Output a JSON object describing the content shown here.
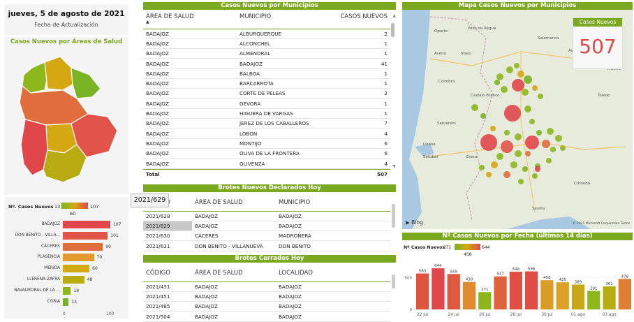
{
  "header": {
    "date": "jueves, 5 de agosto de 2021",
    "date_label": "Fecha de Actualización"
  },
  "areas_map": {
    "title": "Casos Nuevos por Áreas de Salud"
  },
  "areas_chart": {
    "legend_label": "Nº. Casos Nuevos",
    "legend_min": "13",
    "legend_max": "107",
    "legend_mid": "60",
    "categories": [
      "BADAJOZ",
      "DON BENITO - VILLA...",
      "CÁCERES",
      "PLASENCIA",
      "MÉRIDA",
      "LLERENA-ZAFRA",
      "NAVALMORAL DE LA ...",
      "CORIA"
    ],
    "values": [
      107,
      101,
      90,
      70,
      60,
      48,
      18,
      13
    ],
    "colors": [
      "#e1474a",
      "#e2534a",
      "#e06e3d",
      "#e59a2d",
      "#d5a812",
      "#b9ac12",
      "#8db81d",
      "#7ab324"
    ],
    "axis_ticks": [
      "0",
      "100"
    ]
  },
  "municipios": {
    "title": "Casos Nuevos por Municipios",
    "col_area": "ÁREA DE SALUD",
    "col_mun": "MUNICIPIO",
    "col_casos": "CASOS NUEVOS",
    "rows": [
      [
        "BADAJOZ",
        "ALBURQUERQUE",
        "2"
      ],
      [
        "BADAJOZ",
        "ALCONCHEL",
        "1"
      ],
      [
        "BADAJOZ",
        "ALMENDRAL",
        "1"
      ],
      [
        "BADAJOZ",
        "BADAJOZ",
        "41"
      ],
      [
        "BADAJOZ",
        "BALBOA",
        "1"
      ],
      [
        "BADAJOZ",
        "BARCARROTA",
        "1"
      ],
      [
        "BADAJOZ",
        "CORTE DE PELEAS",
        "2"
      ],
      [
        "BADAJOZ",
        "GEVORA",
        "1"
      ],
      [
        "BADAJOZ",
        "HIGUERA DE VARGAS",
        "1"
      ],
      [
        "BADAJOZ",
        "JEREZ DE LOS CABALLEROS",
        "7"
      ],
      [
        "BADAJOZ",
        "LOBON",
        "4"
      ],
      [
        "BADAJOZ",
        "MONTIJO",
        "6"
      ],
      [
        "BADAJOZ",
        "OLIVA DE LA FRONTERA",
        "6"
      ],
      [
        "BADAJOZ",
        "OLIVENZA",
        "4"
      ]
    ],
    "total_label": "Total",
    "total_value": "507"
  },
  "brotes_nuevos": {
    "title": "Brotes Nuevos Declarados Hoy",
    "tooltip": "2021/629",
    "col_codigo": "CÓDIGO",
    "col_area": "ÁREA DE SALUD",
    "col_mun": "MUNICIPIO",
    "rows": [
      [
        "2021/628",
        "BADAJOZ",
        "BADAJOZ"
      ],
      [
        "2021/629",
        "BADAJOZ",
        "BADAJOZ"
      ],
      [
        "2021/630",
        "CÁCERES",
        "MADROÑERA"
      ],
      [
        "2021/631",
        "DON BENITO - VILLANUEVA",
        "DON BENITO"
      ]
    ]
  },
  "brotes_cerrados": {
    "title": "Brotes Cerrados Hoy",
    "col_codigo": "CÓDIGO",
    "col_area": "ÁREA DE SALUD",
    "col_loc": "LOCALIDAD",
    "rows": [
      [
        "2021/431",
        "BADAJOZ",
        "BADAJOZ"
      ],
      [
        "2021/451",
        "BADAJOZ",
        "BADAJOZ"
      ],
      [
        "2021/485",
        "BADAJOZ",
        "BADAJOZ"
      ],
      [
        "2021/504",
        "BADAJOZ",
        "BADAJOZ"
      ]
    ]
  },
  "mapa": {
    "title": "Mapa Casos Nuevos por Municipios",
    "kpi_label": "Casos Nuevos",
    "kpi_value": "507",
    "places": [
      "Oporto",
      "Peso da Régua",
      "Salamanca",
      "Aveiro",
      "Viseu",
      "Ávila",
      "Coimbra",
      "Madrid",
      "Castelo Branco",
      "Toledo",
      "Santarém",
      "Lisboa",
      "Setúbal",
      "Évora",
      "Córdoba",
      "Sevilla"
    ],
    "bing": "Bing",
    "copyright": "© 2021 Microsoft Corporation  Terms"
  },
  "fecha_chart": {
    "title": "Nº Casos Nuevos por Fecha (últimos 14 días)",
    "legend_label": "Nº Casos Nuevos",
    "legend_min": "271",
    "legend_max": "644",
    "legend_mid": "458",
    "ylim": [
      0,
      700
    ],
    "yticks": [
      "500",
      "0"
    ],
    "values": [
      563,
      644,
      555,
      430,
      271,
      517,
      590,
      596,
      458,
      425,
      389,
      291,
      361,
      478
    ],
    "colors": [
      "#e0543e",
      "#e1474a",
      "#e0583e",
      "#e18a2f",
      "#8cb61b",
      "#e0623c",
      "#e14e44",
      "#e14c45",
      "#d99d25",
      "#dca126",
      "#c9a719",
      "#8db81d",
      "#b9ac12",
      "#e07f33"
    ],
    "xlabels": [
      "22 jul",
      "24 jul",
      "26 jul",
      "28 jul",
      "30 jul",
      "01 ago",
      "03 ago"
    ]
  }
}
